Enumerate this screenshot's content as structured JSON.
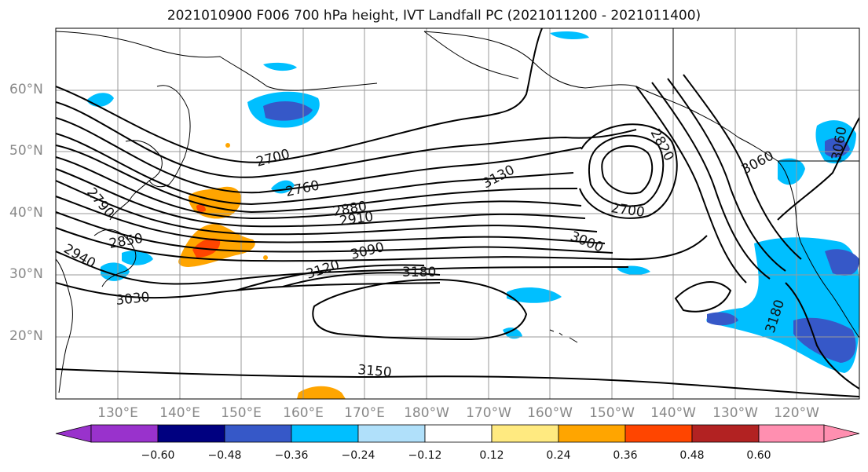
{
  "title": "2021010900 F006 700 hPa height, IVT Landfall PC (2021011200 - 2021011400)",
  "lat_labels": [
    "60°N",
    "50°N",
    "40°N",
    "30°N",
    "20°N"
  ],
  "lon_labels": [
    "130°E",
    "140°E",
    "150°E",
    "160°E",
    "170°E",
    "180°W",
    "170°W",
    "160°W",
    "150°W",
    "140°W",
    "130°W",
    "120°W"
  ],
  "contour_labels": [
    {
      "text": "2700"
    },
    {
      "text": "2760"
    },
    {
      "text": "2880"
    },
    {
      "text": "2910"
    },
    {
      "text": "3130"
    },
    {
      "text": "3000"
    },
    {
      "text": "3090"
    },
    {
      "text": "3120"
    },
    {
      "text": "3180"
    },
    {
      "text": "3150"
    },
    {
      "text": "3030"
    },
    {
      "text": "2940"
    },
    {
      "text": "2850"
    },
    {
      "text": "2790"
    },
    {
      "text": "2700"
    },
    {
      "text": "2820"
    },
    {
      "text": "3060"
    },
    {
      "text": "3060"
    },
    {
      "text": "3180"
    }
  ],
  "colorbar": {
    "colors": [
      "#9932cc",
      "#000080",
      "#3658c8",
      "#00bfff",
      "#b0e0fa",
      "#ffffff",
      "#ffea80",
      "#ffa500",
      "#ff4500",
      "#b22222",
      "#ff8fb0"
    ],
    "tick_labels": [
      "−0.60",
      "−0.48",
      "−0.36",
      "−0.24",
      "−0.12",
      "0.12",
      "0.24",
      "0.36",
      "0.48",
      "0.60"
    ]
  }
}
